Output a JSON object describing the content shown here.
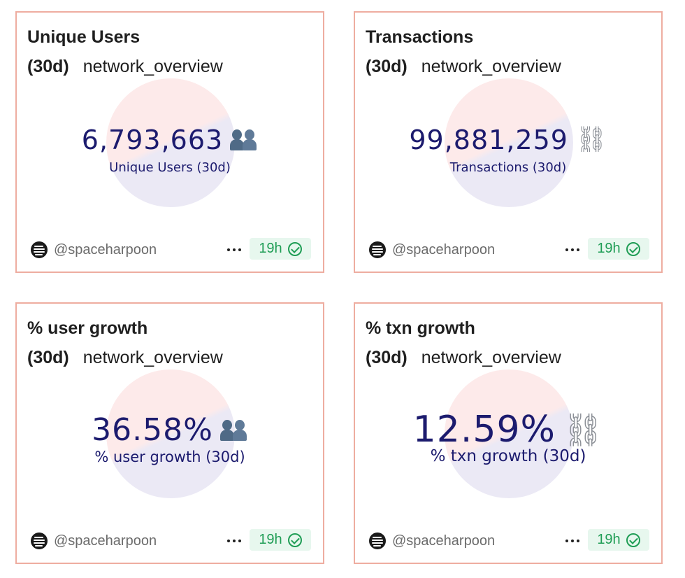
{
  "cards": [
    {
      "title": "Unique Users",
      "period": "(30d)",
      "query": "network_overview",
      "value": "6,793,663",
      "caption": "Unique Users (30d)",
      "icon": "users-icon",
      "author": "@spaceharpoon",
      "age": "19h"
    },
    {
      "title": "Transactions",
      "period": "(30d)",
      "query": "network_overview",
      "value": "99,881,259",
      "caption": "Transactions (30d)",
      "icon": "chain-icon",
      "author": "@spaceharpoon",
      "age": "19h"
    },
    {
      "title": "% user growth",
      "period": "(30d)",
      "query": "network_overview",
      "value": "36.58%",
      "caption": "% user growth (30d)",
      "icon": "users-icon",
      "author": "@spaceharpoon",
      "age": "19h"
    },
    {
      "title": "% txn growth",
      "period": "(30d)",
      "query": "network_overview",
      "value": "12.59%",
      "caption": "% txn growth (30d)",
      "icon": "chain-icon",
      "author": "@spaceharpoon",
      "age": "19h"
    }
  ],
  "colors": {
    "card_border": "#eeada0",
    "value_text": "#1c1b6e",
    "badge_bg": "#e7f7ee",
    "badge_text": "#1f9d55",
    "bubble_top": "#fdeaea",
    "bubble_bottom": "#ebe9f5"
  }
}
